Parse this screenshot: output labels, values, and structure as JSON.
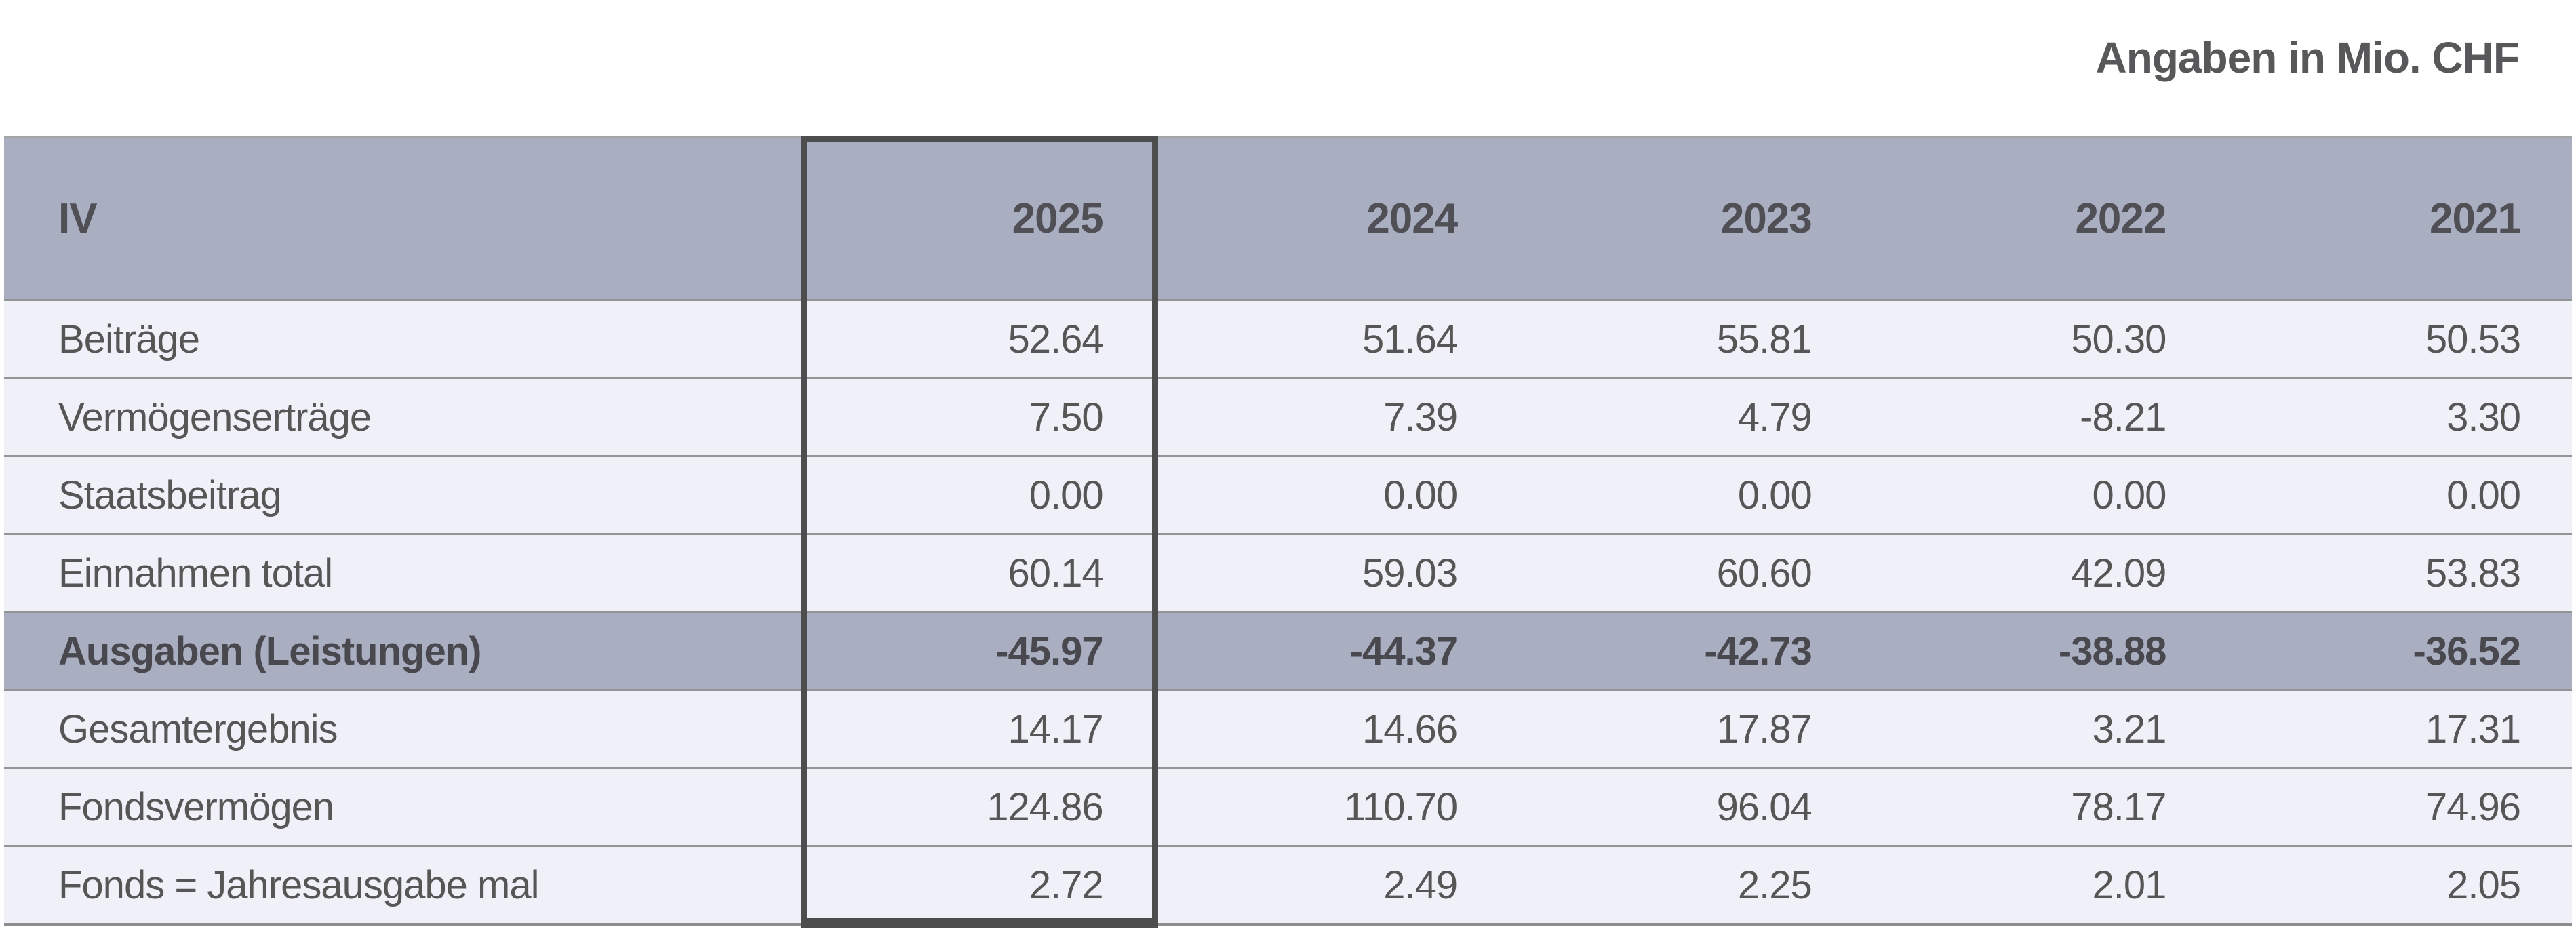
{
  "unit_note": "Angaben in Mio. CHF",
  "table": {
    "header": {
      "label": "IV",
      "years": [
        "2025",
        "2024",
        "2023",
        "2022",
        "2021"
      ]
    },
    "highlighted_year": "2025",
    "rows": [
      {
        "label": "Beiträge",
        "values": [
          "52.64",
          "51.64",
          "55.81",
          "50.30",
          "50.53"
        ],
        "emphasis": false
      },
      {
        "label": "Vermögenserträge",
        "values": [
          "7.50",
          "7.39",
          "4.79",
          "-8.21",
          "3.30"
        ],
        "emphasis": false
      },
      {
        "label": "Staatsbeitrag",
        "values": [
          "0.00",
          "0.00",
          "0.00",
          "0.00",
          "0.00"
        ],
        "emphasis": false
      },
      {
        "label": "Einnahmen total",
        "values": [
          "60.14",
          "59.03",
          "60.60",
          "42.09",
          "53.83"
        ],
        "emphasis": false
      },
      {
        "label": "Ausgaben (Leistungen)",
        "values": [
          "-45.97",
          "-44.37",
          "-42.73",
          "-38.88",
          "-36.52"
        ],
        "emphasis": true
      },
      {
        "label": "Gesamtergebnis",
        "values": [
          "14.17",
          "14.66",
          "17.87",
          "3.21",
          "17.31"
        ],
        "emphasis": false
      },
      {
        "label": "Fondsvermögen",
        "values": [
          "124.86",
          "110.70",
          "96.04",
          "78.17",
          "74.96"
        ],
        "emphasis": false
      },
      {
        "label": "Fonds = Jahresausgabe mal",
        "values": [
          "2.72",
          "2.49",
          "2.25",
          "2.01",
          "2.05"
        ],
        "emphasis": false
      }
    ]
  },
  "colors": {
    "header_background": "#a9aec1",
    "row_background": "#eff0f8",
    "highlight_row_background": "#a9aec1",
    "text": "#565656",
    "bold_text": "#48484e",
    "row_separator": "#949494",
    "highlight_box_border": "#4d4d4d"
  }
}
